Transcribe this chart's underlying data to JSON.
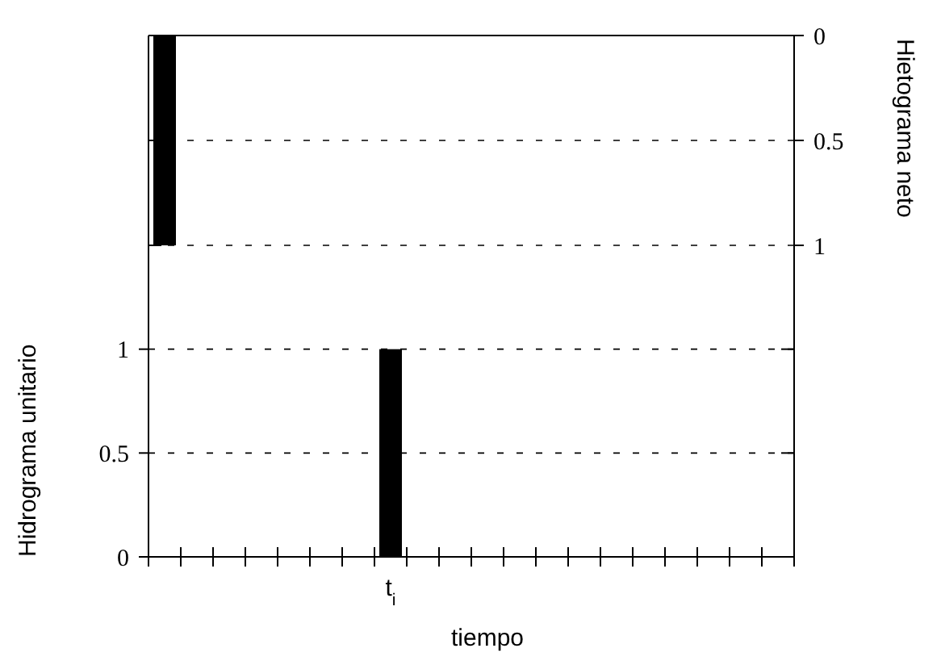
{
  "chart_data": [
    {
      "type": "bar",
      "ylabel": "Hietograma neto",
      "categories": [
        null,
        null,
        null,
        null,
        null,
        null,
        null,
        null,
        null,
        null,
        null,
        null,
        null,
        null,
        null,
        null,
        null,
        null,
        null,
        null
      ],
      "series": [
        {
          "color": "#000000",
          "values": [
            1,
            null,
            null,
            null,
            null,
            null,
            null,
            null,
            null,
            null,
            null,
            null,
            null,
            null,
            null,
            null,
            null,
            null,
            null,
            null
          ]
        }
      ],
      "ylim": [
        1,
        0
      ],
      "yticks": [
        0,
        0.5,
        1
      ],
      "grid": "y",
      "line_style": "dashed",
      "tick_labels": "y"
    },
    {
      "type": "bar",
      "xlabel": "tiempo",
      "ylabel": "Hidrograma unitario",
      "categories": [
        null,
        null,
        null,
        null,
        null,
        null,
        null,
        "t$_{i}$",
        null,
        null,
        null,
        null,
        null,
        null,
        null,
        null,
        null,
        null,
        null,
        null
      ],
      "series": [
        {
          "color": "#000000",
          "values": [
            null,
            null,
            null,
            null,
            null,
            null,
            null,
            1,
            null,
            null,
            null,
            null,
            null,
            null,
            null,
            null,
            null,
            null,
            null,
            null
          ]
        }
      ],
      "ylim": [
        0,
        1.5
      ],
      "yticks": [
        0,
        0.5,
        1
      ],
      "grid": "y",
      "line_style": "dashed"
    }
  ]
}
